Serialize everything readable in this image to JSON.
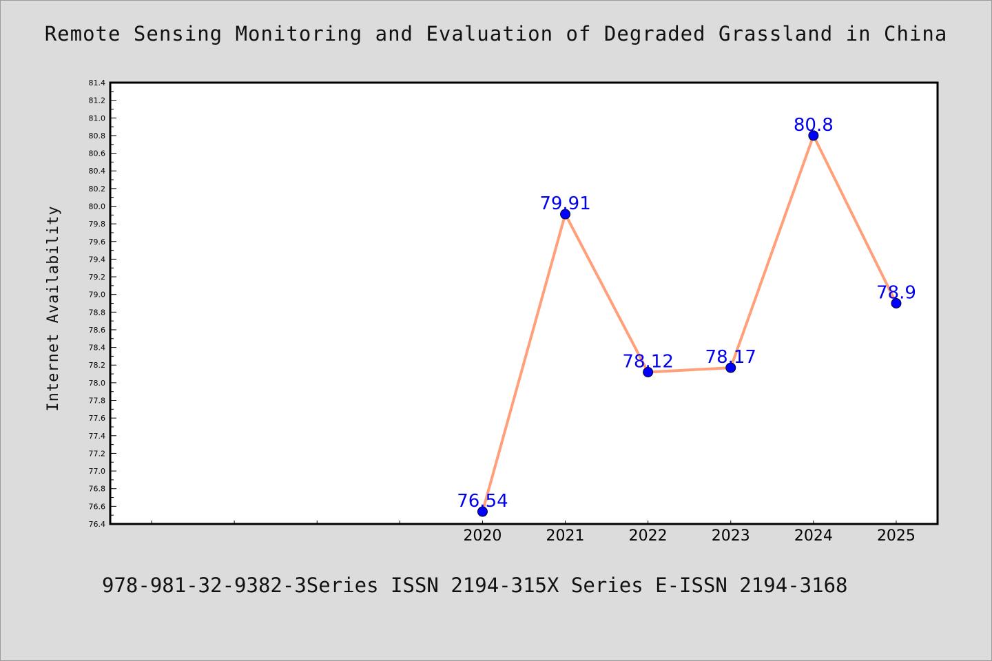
{
  "page": {
    "title": "Remote Sensing Monitoring and Evaluation of Degraded Grassland in China",
    "footer": "978-981-32-9382-3Series ISSN 2194-315X Series E-ISSN 2194-3168"
  },
  "colors": {
    "background": "#dcdcdc",
    "plot_background": "#ffffff",
    "line": "#ffa07a",
    "marker": "#0000ff",
    "data_label": "#0000ee"
  },
  "chart_data": {
    "type": "line",
    "title": "Remote Sensing Monitoring and Evaluation of Degraded Grassland in China",
    "xlabel": "",
    "ylabel": "Internet Availability",
    "x": [
      2020,
      2021,
      2022,
      2023,
      2024,
      2025
    ],
    "xlim": [
      2015.5,
      2025.5
    ],
    "series": [
      {
        "values": [
          76.54,
          79.91,
          78.12,
          78.17,
          80.8,
          78.9
        ],
        "labels": [
          "76.54",
          "79.91",
          "78.12",
          "78.17",
          "80.8",
          "78.9"
        ]
      }
    ],
    "ylim": [
      76.4,
      81.4
    ],
    "yticks": [
      "76.4",
      "76.6",
      "76.8",
      "77.0",
      "77.2",
      "77.4",
      "77.6",
      "77.8",
      "78.0",
      "78.2",
      "78.4",
      "78.6",
      "78.8",
      "79.0",
      "79.2",
      "79.4",
      "79.6",
      "79.8",
      "80.0",
      "80.2",
      "80.4",
      "80.6",
      "80.8",
      "81.0",
      "81.2",
      "81.4"
    ],
    "xticks": [
      "2020",
      "2021",
      "2022",
      "2023",
      "2024",
      "2025"
    ],
    "grid": false,
    "legend": "none"
  }
}
